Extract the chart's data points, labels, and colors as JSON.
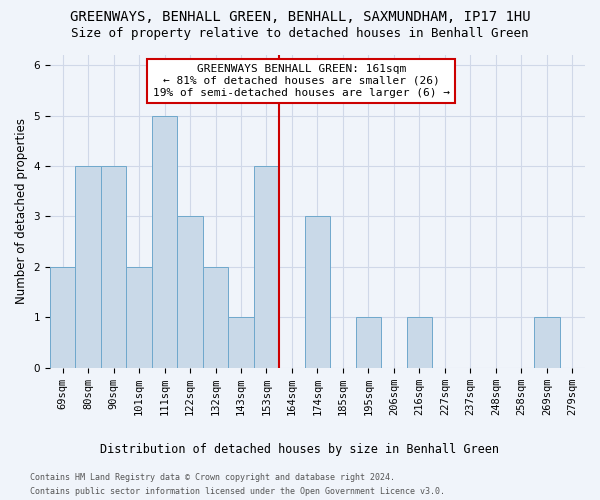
{
  "title": "GREENWAYS, BENHALL GREEN, BENHALL, SAXMUNDHAM, IP17 1HU",
  "subtitle": "Size of property relative to detached houses in Benhall Green",
  "xlabel": "Distribution of detached houses by size in Benhall Green",
  "ylabel": "Number of detached properties",
  "footnote1": "Contains HM Land Registry data © Crown copyright and database right 2024.",
  "footnote2": "Contains public sector information licensed under the Open Government Licence v3.0.",
  "categories": [
    "69sqm",
    "80sqm",
    "90sqm",
    "101sqm",
    "111sqm",
    "122sqm",
    "132sqm",
    "143sqm",
    "153sqm",
    "164sqm",
    "174sqm",
    "185sqm",
    "195sqm",
    "206sqm",
    "216sqm",
    "227sqm",
    "237sqm",
    "248sqm",
    "258sqm",
    "269sqm",
    "279sqm"
  ],
  "values": [
    2,
    4,
    4,
    2,
    5,
    3,
    2,
    1,
    4,
    0,
    3,
    0,
    1,
    0,
    1,
    0,
    0,
    0,
    0,
    1,
    0
  ],
  "bar_color": "#c9d9e8",
  "bar_edge_color": "#6fa8cc",
  "vline_x": 8.5,
  "vline_color": "#cc0000",
  "annotation_box_text": "GREENWAYS BENHALL GREEN: 161sqm\n← 81% of detached houses are smaller (26)\n19% of semi-detached houses are larger (6) →",
  "annotation_box_color": "#cc0000",
  "ylim": [
    0,
    6.2
  ],
  "yticks": [
    0,
    1,
    2,
    3,
    4,
    5,
    6
  ],
  "grid_color": "#d0d8e8",
  "bg_color": "#f0f4fa",
  "title_fontsize": 10,
  "subtitle_fontsize": 9,
  "axis_label_fontsize": 8.5,
  "tick_fontsize": 7.5,
  "annotation_fontsize": 8,
  "footnote_fontsize": 6
}
